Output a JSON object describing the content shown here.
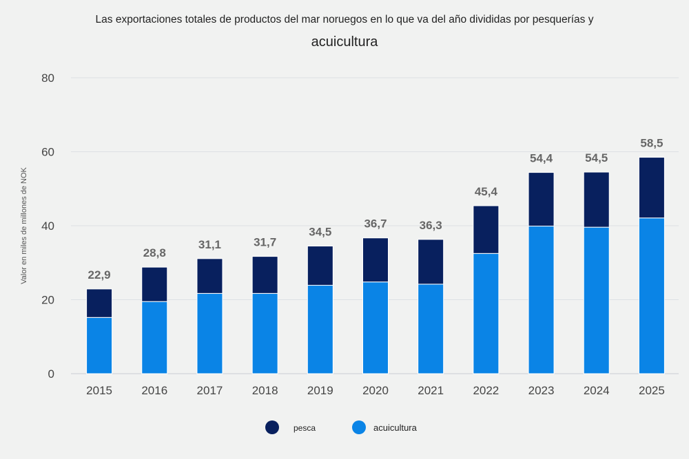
{
  "chart_data": {
    "type": "bar",
    "stacked": true,
    "title": "Las exportaciones totales de productos del mar noruegos en lo que va del año divididas por pesquerías y",
    "subtitle": "acuicultura",
    "ylabel": "Valor en miles de millones de NOK",
    "xlabel": "",
    "ylim": [
      0,
      80
    ],
    "yticks": [
      0,
      20,
      40,
      60,
      80
    ],
    "grid": true,
    "legend_position": "bottom-center",
    "categories": [
      "2015",
      "2016",
      "2017",
      "2018",
      "2019",
      "2020",
      "2021",
      "2022",
      "2023",
      "2024",
      "2025"
    ],
    "series": [
      {
        "name": "acuicultura",
        "color": "#0a84e6",
        "values": [
          15.2,
          19.5,
          21.7,
          21.7,
          23.9,
          24.8,
          24.2,
          32.5,
          39.9,
          39.6,
          42.1
        ]
      },
      {
        "name": "pesca",
        "color": "#08205e",
        "values": [
          7.7,
          9.3,
          9.4,
          10.0,
          10.6,
          11.9,
          12.1,
          12.9,
          14.5,
          14.9,
          16.4
        ]
      }
    ],
    "totals": [
      "22,9",
      "28,8",
      "31,1",
      "31,7",
      "34,5",
      "36,7",
      "36,3",
      "45,4",
      "54,4",
      "54,5",
      "58,5"
    ],
    "legend_order": [
      "pesca",
      "acuicultura"
    ]
  }
}
